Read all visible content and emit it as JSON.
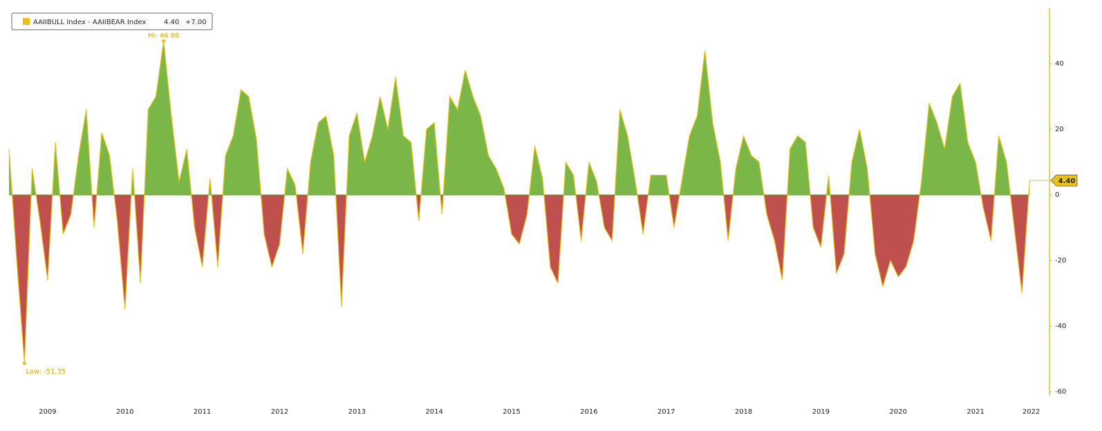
{
  "chart_data": {
    "type": "area",
    "legend_title": "AAIIBULL Index - AAIIBEAR Index",
    "last_label": "4.40",
    "change_label": "+7.00",
    "hi_label": "Hi: 46.88",
    "low_label": "Low: -51.35",
    "positive_color": "#7ab648",
    "negative_color": "#c0504d",
    "line_color": "#e8c21a",
    "xlim": [
      2009,
      2022.25
    ],
    "xticks": [
      {
        "value": 2009.5,
        "label": "2009"
      },
      {
        "value": 2010.5,
        "label": "2010"
      },
      {
        "value": 2011.5,
        "label": "2011"
      },
      {
        "value": 2012.5,
        "label": "2012"
      },
      {
        "value": 2013.5,
        "label": "2013"
      },
      {
        "value": 2014.5,
        "label": "2014"
      },
      {
        "value": 2015.5,
        "label": "2015"
      },
      {
        "value": 2016.5,
        "label": "2016"
      },
      {
        "value": 2017.5,
        "label": "2017"
      },
      {
        "value": 2018.5,
        "label": "2018"
      },
      {
        "value": 2019.5,
        "label": "2019"
      },
      {
        "value": 2020.5,
        "label": "2020"
      },
      {
        "value": 2021.5,
        "label": "2021"
      },
      {
        "value": 2022.22,
        "label": "2022"
      }
    ],
    "ylim": [
      -61,
      56
    ],
    "yticks": [
      40,
      20,
      0,
      -20,
      -40,
      -60
    ],
    "x": [
      2009.0,
      2009.1,
      2009.2,
      2009.3,
      2009.4,
      2009.5,
      2009.6,
      2009.7,
      2009.8,
      2009.9,
      2010.0,
      2010.1,
      2010.2,
      2010.3,
      2010.4,
      2010.5,
      2010.6,
      2010.7,
      2010.8,
      2010.9,
      2011.0,
      2011.1,
      2011.2,
      2011.3,
      2011.4,
      2011.5,
      2011.6,
      2011.7,
      2011.8,
      2011.9,
      2012.0,
      2012.1,
      2012.2,
      2012.3,
      2012.4,
      2012.5,
      2012.6,
      2012.7,
      2012.8,
      2012.9,
      2013.0,
      2013.1,
      2013.2,
      2013.3,
      2013.4,
      2013.5,
      2013.6,
      2013.7,
      2013.8,
      2013.9,
      2014.0,
      2014.1,
      2014.2,
      2014.3,
      2014.4,
      2014.5,
      2014.6,
      2014.7,
      2014.8,
      2014.9,
      2015.0,
      2015.1,
      2015.2,
      2015.3,
      2015.4,
      2015.5,
      2015.6,
      2015.7,
      2015.8,
      2015.9,
      2016.0,
      2016.1,
      2016.2,
      2016.3,
      2016.4,
      2016.5,
      2016.6,
      2016.7,
      2016.8,
      2016.9,
      2017.0,
      2017.1,
      2017.2,
      2017.3,
      2017.4,
      2017.5,
      2017.6,
      2017.7,
      2017.8,
      2017.9,
      2018.0,
      2018.1,
      2018.2,
      2018.3,
      2018.4,
      2018.5,
      2018.6,
      2018.7,
      2018.8,
      2018.9,
      2019.0,
      2019.1,
      2019.2,
      2019.3,
      2019.4,
      2019.5,
      2019.6,
      2019.7,
      2019.8,
      2019.9,
      2020.0,
      2020.1,
      2020.2,
      2020.3,
      2020.4,
      2020.5,
      2020.6,
      2020.7,
      2020.8,
      2020.9,
      2021.0,
      2021.1,
      2021.2,
      2021.3,
      2021.4,
      2021.5,
      2021.6,
      2021.7,
      2021.8,
      2021.9,
      2022.0,
      2022.1,
      2022.2
    ],
    "values": [
      14,
      -20,
      -51.35,
      8,
      -8,
      -26,
      16,
      -12,
      -6,
      12,
      26,
      -10,
      19,
      12,
      -8,
      -35,
      8,
      -27,
      26,
      30,
      46.88,
      24,
      4,
      14,
      -10,
      -22,
      5,
      -22,
      12,
      18,
      32,
      30,
      17,
      -12,
      -22,
      -15,
      8,
      3,
      -18,
      10,
      22,
      24,
      12,
      -34,
      18,
      25,
      10,
      18,
      30,
      20,
      36,
      18,
      16,
      -8,
      20,
      22,
      -6,
      30,
      26,
      38,
      30,
      24,
      12,
      8,
      2,
      -12,
      -15,
      -6,
      15,
      5,
      -22,
      -27,
      10,
      6,
      -14,
      10,
      4,
      -10,
      -14,
      26,
      18,
      4,
      -12,
      6,
      6,
      6,
      -10,
      4,
      18,
      24,
      44,
      22,
      10,
      -14,
      8,
      18,
      12,
      10,
      -6,
      -14,
      -26,
      14,
      18,
      16,
      -10,
      -16,
      6,
      -24,
      -18,
      10,
      20,
      8,
      -18,
      -28,
      -20,
      -25,
      -22,
      -14,
      4,
      28,
      22,
      14,
      30,
      34,
      16,
      10,
      -4,
      -14,
      18,
      10,
      -10,
      -30,
      4.4
    ]
  }
}
